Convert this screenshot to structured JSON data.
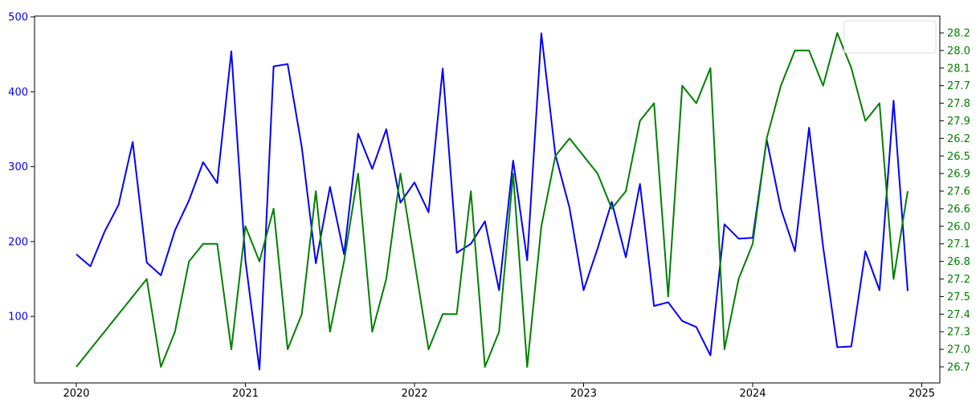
{
  "chart_data": {
    "type": "line",
    "title": "",
    "xlabel": "",
    "ylabel_left": "",
    "ylabel_right": "",
    "x_ticks": [
      "2020",
      "2021",
      "2022",
      "2023",
      "2024",
      "2025"
    ],
    "left_axis": {
      "ylim": [
        27,
        500
      ],
      "ticks": [
        "100",
        "200",
        "300",
        "400",
        "500"
      ],
      "color": "#0000ff"
    },
    "right_axis": {
      "categories": [
        "26.7",
        "27.0",
        "27.3",
        "27.4",
        "27.5",
        "27.2",
        "26.8",
        "27.1",
        "26.0",
        "26.6",
        "27.6",
        "26.9",
        "26.5",
        "26.2",
        "27.9",
        "27.8",
        "27.7",
        "28.1",
        "28.0",
        "28.2"
      ],
      "color": "#008000"
    },
    "legend": {
      "placement": "top-right",
      "entries": []
    },
    "x": [
      "2020-01",
      "2020-02",
      "2020-03",
      "2020-04",
      "2020-05",
      "2020-06",
      "2020-07",
      "2020-08",
      "2020-09",
      "2020-10",
      "2020-11",
      "2020-12",
      "2021-01",
      "2021-02",
      "2021-03",
      "2021-04",
      "2021-05",
      "2021-06",
      "2021-07",
      "2021-08",
      "2021-09",
      "2021-10",
      "2021-11",
      "2021-12",
      "2022-01",
      "2022-02",
      "2022-03",
      "2022-04",
      "2022-05",
      "2022-06",
      "2022-07",
      "2022-08",
      "2022-09",
      "2022-10",
      "2022-11",
      "2022-12",
      "2023-01",
      "2023-02",
      "2023-03",
      "2023-04",
      "2023-05",
      "2023-06",
      "2023-07",
      "2023-08",
      "2023-09",
      "2023-10",
      "2023-11",
      "2023-12",
      "2024-01",
      "2024-02",
      "2024-03",
      "2024-04",
      "2024-05",
      "2024-06",
      "2024-07",
      "2024-08",
      "2024-09",
      "2024-10",
      "2024-11",
      "2024-12"
    ],
    "series": [
      {
        "axis": "left",
        "color": "#0000ff",
        "values": [
          183,
          167,
          213,
          249,
          333,
          172,
          155,
          215,
          255,
          306,
          278,
          454,
          175,
          29,
          434,
          437,
          326,
          171,
          273,
          183,
          344,
          297,
          350,
          252,
          279,
          239,
          431,
          185,
          197,
          227,
          135,
          308,
          175,
          478,
          316,
          245,
          135,
          191,
          253,
          179,
          277,
          114,
          119,
          94,
          86,
          48,
          223,
          204,
          205,
          336,
          244,
          187,
          352,
          193,
          59,
          60,
          187,
          135,
          388,
          134
        ]
      },
      {
        "axis": "right",
        "color": "#008000",
        "values": [
          26.7,
          27.0,
          27.3,
          27.4,
          27.5,
          27.2,
          26.7,
          27.3,
          26.8,
          27.1,
          27.1,
          27.0,
          26.0,
          26.8,
          26.6,
          27.0,
          27.4,
          27.6,
          27.3,
          26.8,
          26.9,
          27.3,
          27.2,
          26.9,
          26.8,
          27.0,
          27.4,
          27.4,
          27.6,
          26.7,
          27.3,
          26.9,
          26.7,
          26.0,
          26.5,
          26.2,
          26.5,
          26.9,
          26.6,
          27.6,
          27.9,
          27.8,
          27.5,
          27.7,
          27.8,
          28.1,
          27.0,
          27.2,
          27.1,
          26.2,
          27.7,
          28.0,
          28.0,
          27.7,
          28.2,
          28.1,
          27.9,
          27.8,
          27.2,
          27.6
        ]
      }
    ]
  }
}
